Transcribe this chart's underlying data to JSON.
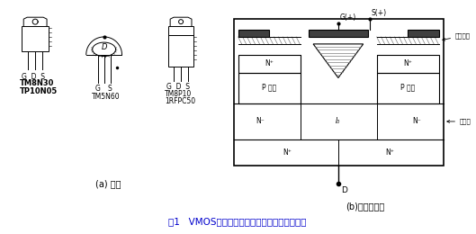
{
  "title": "图1   VMOS功率场效应管外形及内部结构示意图",
  "title_color": "#0000cc",
  "bg_color": "#ffffff",
  "fig_width": 5.29,
  "fig_height": 2.6,
  "labels": {
    "part_a": "(a) 外形",
    "part_b": "(b)内部结构构",
    "t1_pins": "G D S",
    "t1_model1": "TM8N30",
    "t1_model2": "TP10N05",
    "t2_model": "TM5N60",
    "t2_pins_g": "G",
    "t2_pins_s": "S",
    "t3_pins": "G D S",
    "t3_model1": "TM8P10",
    "t3_model2": "1RFPC50",
    "sio2": "二氧化硅",
    "drift": "漂移区",
    "id": "I₀",
    "s_plus": "S(+)",
    "g_plus": "G(+)",
    "d_label": "D",
    "p_ch_l": "P 沟道",
    "p_ch_r": "P 沟道",
    "n_plus_label": "N⁺",
    "n_minus_label": "N⁻"
  }
}
